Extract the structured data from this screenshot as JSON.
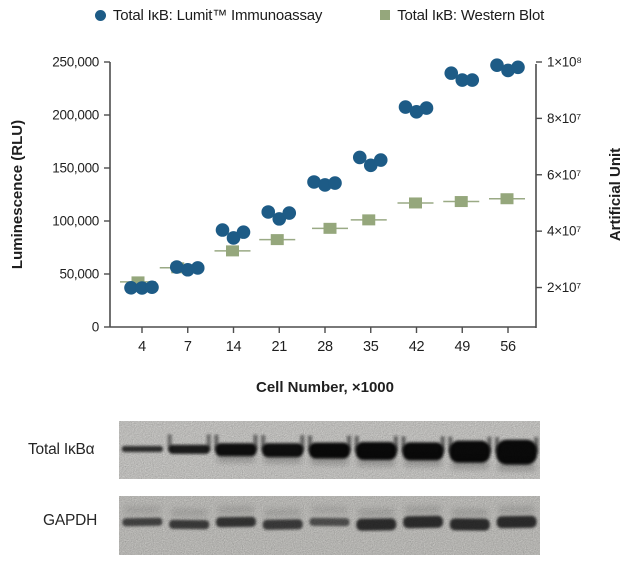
{
  "legend": {
    "items": [
      {
        "label": "Total IκB: Lumit™ Immunoassay",
        "marker": "dot"
      },
      {
        "label": "Total IκB: Western Blot",
        "marker": "square"
      }
    ]
  },
  "colors": {
    "blue": "#1d5b86",
    "green": "#95a77c",
    "axis": "#4d4d4d",
    "tick_text": "#1f1f1f",
    "mean_line_blue": "#8fa3b3",
    "mean_line_green": "#9aaa85",
    "band_black": "#0b0b0b",
    "band_gray": "#2f2f2f",
    "strip_bg_top": "#f3f2ef",
    "strip_bg_bottom": "#eae9e5"
  },
  "chart_data": {
    "type": "scatter",
    "title": "",
    "xlabel": "Cell Number, ×1000",
    "ylabel_left": "Luminescence (RLU)",
    "ylabel_right": "Artificial Unit",
    "categories": [
      "4",
      "7",
      "14",
      "21",
      "28",
      "35",
      "42",
      "49",
      "56"
    ],
    "left_axis": {
      "min": 0,
      "max": 250000,
      "tick_values": [
        0,
        50000,
        100000,
        150000,
        200000,
        250000
      ],
      "tick_labels": [
        "0",
        "50,000",
        "100,000",
        "150,000",
        "200,000",
        "250,000"
      ]
    },
    "right_axis": {
      "min": 6000000,
      "max": 100000000,
      "tick_values": [
        20000000,
        40000000,
        60000000,
        80000000,
        100000000
      ],
      "tick_labels": [
        "2×10⁷",
        "4×10⁷",
        "6×10⁷",
        "8×10⁷",
        "1×10⁸"
      ]
    },
    "legend_position": "top",
    "grid": false,
    "series": [
      {
        "name": "Total IκB: Lumit™ Immunoassay",
        "marker": "circle",
        "axis": "left",
        "unit": "RLU",
        "x_jitter": [
          -11,
          0,
          10
        ],
        "replicates": [
          [
            37000,
            36800,
            37500
          ],
          [
            56500,
            54000,
            55700
          ],
          [
            91500,
            84000,
            89500
          ],
          [
            108500,
            102000,
            107500
          ],
          [
            136800,
            134000,
            135800
          ],
          [
            160000,
            152500,
            157500
          ],
          [
            207500,
            203000,
            206500
          ],
          [
            239500,
            233000,
            233000
          ],
          [
            247000,
            242000,
            245000
          ]
        ]
      },
      {
        "name": "Total IκB: Western Blot",
        "marker": "square",
        "axis": "right",
        "unit": "AU",
        "x_jitter": [
          -4,
          -10,
          -1,
          -2,
          5,
          -2,
          -1,
          -1,
          -1
        ],
        "values": [
          22000000,
          27000000,
          33000000,
          37000000,
          41000000,
          44000000,
          50000000,
          50500000,
          51500000
        ]
      }
    ]
  },
  "blots": {
    "panels": [
      {
        "label": "Total IκBα",
        "lanes": 9,
        "band_heights": [
          6,
          9,
          13,
          14,
          16,
          18,
          18,
          22,
          25
        ],
        "band_opacities": [
          0.8,
          0.9,
          0.97,
          0.97,
          1,
          1,
          1,
          1,
          1
        ]
      },
      {
        "label": "GAPDH",
        "lanes": 9,
        "band_heights": [
          8,
          9,
          10,
          10,
          8,
          12,
          12,
          12,
          12
        ],
        "band_opacities": [
          0.8,
          0.85,
          0.9,
          0.85,
          0.72,
          0.95,
          0.95,
          0.95,
          0.95
        ]
      }
    ]
  }
}
